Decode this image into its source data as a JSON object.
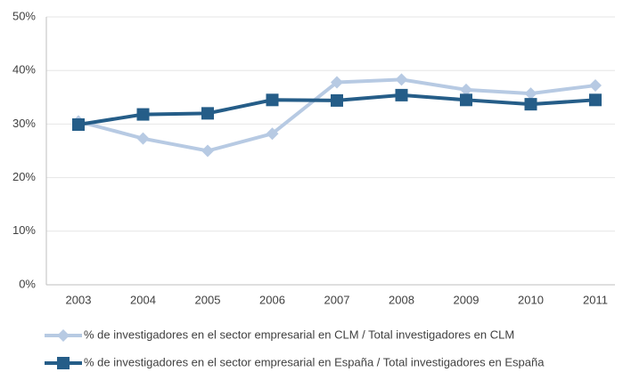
{
  "chart_data": {
    "type": "line",
    "categories": [
      "2003",
      "2004",
      "2005",
      "2006",
      "2007",
      "2008",
      "2009",
      "2010",
      "2011"
    ],
    "series": [
      {
        "name": "% de investigadores en el sector empresarial en CLM / Total investigadores en CLM",
        "color": "#b7cae3",
        "marker": "diamond",
        "values": [
          30.5,
          27.3,
          25.0,
          28.2,
          37.8,
          38.3,
          36.4,
          35.7,
          37.2
        ]
      },
      {
        "name": "% de investigadores en el sector empresarial en España / Total investigadores en España",
        "color": "#255d88",
        "marker": "square",
        "values": [
          29.9,
          31.8,
          32.0,
          34.5,
          34.4,
          35.4,
          34.5,
          33.7,
          34.5
        ]
      }
    ],
    "ylim": [
      0,
      50
    ],
    "yticks": [
      {
        "value": 0,
        "label": "0%"
      },
      {
        "value": 10,
        "label": "10%"
      },
      {
        "value": 20,
        "label": "20%"
      },
      {
        "value": 30,
        "label": "30%"
      },
      {
        "value": 40,
        "label": "40%"
      },
      {
        "value": 50,
        "label": "50%"
      }
    ],
    "grid": true,
    "legend": "bottom"
  }
}
